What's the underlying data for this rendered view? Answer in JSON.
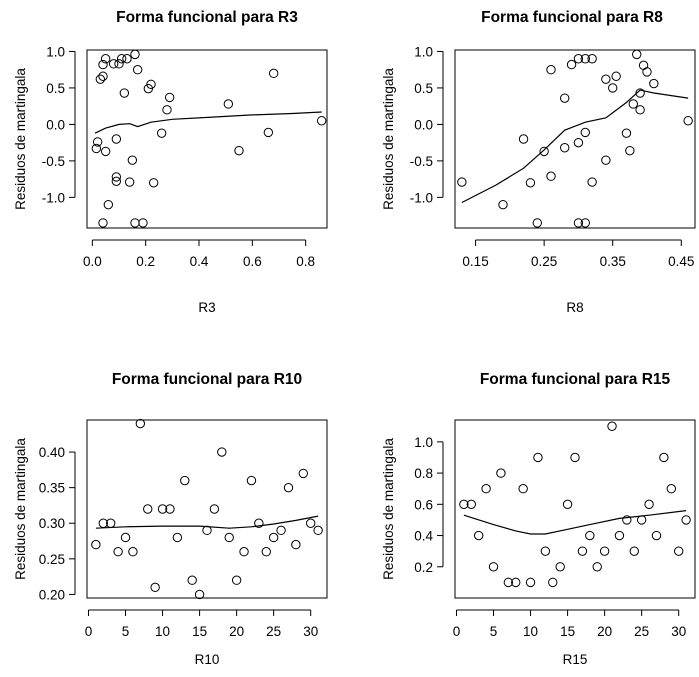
{
  "chart_data": [
    {
      "type": "scatter",
      "title": "Forma funcional para R3",
      "xlabel": "R3",
      "ylabel": "Residuos de martingala",
      "xlim": [
        -0.02,
        0.88
      ],
      "ylim": [
        -1.42,
        1.02
      ],
      "xticks": [
        0.0,
        0.2,
        0.4,
        0.6,
        0.8
      ],
      "xtick_labels": [
        "0.0",
        "0.2",
        "0.4",
        "0.6",
        "0.8"
      ],
      "yticks": [
        -1.0,
        -0.5,
        0.0,
        0.5,
        1.0
      ],
      "ytick_labels": [
        "-1.0",
        "-0.5",
        "0.0",
        "0.5",
        "1.0"
      ],
      "points": [
        [
          0.015,
          -0.33
        ],
        [
          0.02,
          -0.24
        ],
        [
          0.03,
          0.62
        ],
        [
          0.04,
          0.66
        ],
        [
          0.04,
          0.82
        ],
        [
          0.05,
          -0.37
        ],
        [
          0.05,
          0.9
        ],
        [
          0.04,
          -1.35
        ],
        [
          0.06,
          -1.1
        ],
        [
          0.08,
          0.83
        ],
        [
          0.09,
          -0.72
        ],
        [
          0.09,
          -0.78
        ],
        [
          0.09,
          -0.2
        ],
        [
          0.1,
          0.83
        ],
        [
          0.11,
          0.9
        ],
        [
          0.12,
          0.43
        ],
        [
          0.13,
          0.9
        ],
        [
          0.14,
          -0.79
        ],
        [
          0.15,
          -0.49
        ],
        [
          0.16,
          -1.35
        ],
        [
          0.16,
          0.96
        ],
        [
          0.19,
          -1.35
        ],
        [
          0.17,
          0.75
        ],
        [
          0.21,
          0.49
        ],
        [
          0.22,
          0.55
        ],
        [
          0.23,
          -0.8
        ],
        [
          0.26,
          -0.12
        ],
        [
          0.28,
          0.2
        ],
        [
          0.29,
          0.37
        ],
        [
          0.51,
          0.28
        ],
        [
          0.55,
          -0.36
        ],
        [
          0.66,
          -0.11
        ],
        [
          0.68,
          0.7
        ],
        [
          0.86,
          0.05
        ]
      ],
      "smooth": [
        [
          0.01,
          -0.12
        ],
        [
          0.05,
          -0.05
        ],
        [
          0.1,
          0.0
        ],
        [
          0.14,
          0.01
        ],
        [
          0.17,
          -0.03
        ],
        [
          0.22,
          0.03
        ],
        [
          0.3,
          0.07
        ],
        [
          0.45,
          0.1
        ],
        [
          0.6,
          0.13
        ],
        [
          0.75,
          0.15
        ],
        [
          0.86,
          0.17
        ]
      ]
    },
    {
      "type": "scatter",
      "title": "Forma funcional para R8",
      "xlabel": "R8",
      "ylabel": "Residuos de martingala",
      "xlim": [
        0.12,
        0.47
      ],
      "ylim": [
        -1.42,
        1.02
      ],
      "xticks": [
        0.15,
        0.25,
        0.35,
        0.45
      ],
      "xtick_labels": [
        "0.15",
        "0.25",
        "0.35",
        "0.45"
      ],
      "yticks": [
        -1.0,
        -0.5,
        0.0,
        0.5,
        1.0
      ],
      "ytick_labels": [
        "-1.0",
        "-0.5",
        "0.0",
        "0.5",
        "1.0"
      ],
      "points": [
        [
          0.13,
          -0.79
        ],
        [
          0.19,
          -1.1
        ],
        [
          0.22,
          -0.2
        ],
        [
          0.23,
          -0.8
        ],
        [
          0.24,
          -1.35
        ],
        [
          0.25,
          -0.37
        ],
        [
          0.26,
          0.75
        ],
        [
          0.26,
          -0.71
        ],
        [
          0.28,
          0.36
        ],
        [
          0.28,
          -0.32
        ],
        [
          0.29,
          0.82
        ],
        [
          0.3,
          0.9
        ],
        [
          0.3,
          -1.35
        ],
        [
          0.3,
          -0.25
        ],
        [
          0.31,
          -1.35
        ],
        [
          0.31,
          0.9
        ],
        [
          0.31,
          -0.11
        ],
        [
          0.32,
          0.9
        ],
        [
          0.32,
          -0.79
        ],
        [
          0.34,
          -0.49
        ],
        [
          0.34,
          0.62
        ],
        [
          0.35,
          0.5
        ],
        [
          0.355,
          0.66
        ],
        [
          0.37,
          -0.12
        ],
        [
          0.375,
          -0.36
        ],
        [
          0.38,
          0.28
        ],
        [
          0.385,
          0.96
        ],
        [
          0.39,
          0.2
        ],
        [
          0.39,
          0.43
        ],
        [
          0.395,
          0.81
        ],
        [
          0.4,
          0.72
        ],
        [
          0.41,
          0.56
        ],
        [
          0.46,
          0.05
        ]
      ],
      "smooth": [
        [
          0.13,
          -1.07
        ],
        [
          0.18,
          -0.83
        ],
        [
          0.22,
          -0.6
        ],
        [
          0.25,
          -0.35
        ],
        [
          0.28,
          -0.08
        ],
        [
          0.31,
          0.03
        ],
        [
          0.34,
          0.09
        ],
        [
          0.37,
          0.3
        ],
        [
          0.39,
          0.47
        ],
        [
          0.41,
          0.43
        ],
        [
          0.46,
          0.36
        ]
      ]
    },
    {
      "type": "scatter",
      "title": "Forma funcional para R10",
      "xlabel": "R10",
      "ylabel": "Residuos de martingala",
      "xlim": [
        -0.2,
        32.2
      ],
      "ylim": [
        0.195,
        0.445
      ],
      "xticks": [
        0,
        5,
        10,
        15,
        20,
        25,
        30
      ],
      "xtick_labels": [
        "0",
        "5",
        "10",
        "15",
        "20",
        "25",
        "30"
      ],
      "yticks": [
        0.2,
        0.25,
        0.3,
        0.35,
        0.4
      ],
      "ytick_labels": [
        "0.20",
        "0.25",
        "0.30",
        "0.35",
        "0.40"
      ],
      "points": [
        [
          1,
          0.27
        ],
        [
          2,
          0.3
        ],
        [
          3,
          0.3
        ],
        [
          4,
          0.26
        ],
        [
          5,
          0.28
        ],
        [
          6,
          0.26
        ],
        [
          7,
          0.44
        ],
        [
          8,
          0.32
        ],
        [
          9,
          0.21
        ],
        [
          10,
          0.32
        ],
        [
          11,
          0.32
        ],
        [
          12,
          0.28
        ],
        [
          13,
          0.36
        ],
        [
          14,
          0.22
        ],
        [
          15,
          0.2
        ],
        [
          16,
          0.29
        ],
        [
          17,
          0.32
        ],
        [
          18,
          0.4
        ],
        [
          19,
          0.28
        ],
        [
          20,
          0.22
        ],
        [
          21,
          0.26
        ],
        [
          22,
          0.36
        ],
        [
          23,
          0.3
        ],
        [
          24,
          0.26
        ],
        [
          25,
          0.28
        ],
        [
          26,
          0.29
        ],
        [
          27,
          0.35
        ],
        [
          28,
          0.27
        ],
        [
          29,
          0.37
        ],
        [
          30,
          0.3
        ],
        [
          31,
          0.29
        ]
      ],
      "smooth": [
        [
          1,
          0.293
        ],
        [
          5,
          0.295
        ],
        [
          10,
          0.296
        ],
        [
          15,
          0.296
        ],
        [
          19,
          0.293
        ],
        [
          22,
          0.295
        ],
        [
          25,
          0.299
        ],
        [
          28,
          0.304
        ],
        [
          31,
          0.31
        ]
      ]
    },
    {
      "type": "scatter",
      "title": "Forma funcional para R15",
      "xlabel": "R15",
      "ylabel": "Residuos de martingala",
      "xlim": [
        -0.2,
        32.2
      ],
      "ylim": [
        0.0,
        1.14
      ],
      "xticks": [
        0,
        5,
        10,
        15,
        20,
        25,
        30
      ],
      "xtick_labels": [
        "0",
        "5",
        "10",
        "15",
        "20",
        "25",
        "30"
      ],
      "yticks": [
        0.2,
        0.4,
        0.6,
        0.8,
        1.0
      ],
      "ytick_labels": [
        "0.2",
        "0.4",
        "0.6",
        "0.8",
        "1.0"
      ],
      "points": [
        [
          1,
          0.6
        ],
        [
          2,
          0.6
        ],
        [
          3,
          0.4
        ],
        [
          4,
          0.7
        ],
        [
          5,
          0.2
        ],
        [
          6,
          0.8
        ],
        [
          7,
          0.1
        ],
        [
          8,
          0.1
        ],
        [
          9,
          0.7
        ],
        [
          10,
          0.1
        ],
        [
          11,
          0.9
        ],
        [
          12,
          0.3
        ],
        [
          13,
          0.1
        ],
        [
          14,
          0.2
        ],
        [
          15,
          0.6
        ],
        [
          16,
          0.9
        ],
        [
          17,
          0.3
        ],
        [
          18,
          0.4
        ],
        [
          19,
          0.2
        ],
        [
          20,
          0.3
        ],
        [
          21,
          1.1
        ],
        [
          22,
          0.4
        ],
        [
          23,
          0.5
        ],
        [
          24,
          0.3
        ],
        [
          25,
          0.5
        ],
        [
          26,
          0.6
        ],
        [
          27,
          0.4
        ],
        [
          28,
          0.9
        ],
        [
          29,
          0.7
        ],
        [
          30,
          0.3
        ],
        [
          31,
          0.5
        ]
      ],
      "smooth": [
        [
          1,
          0.53
        ],
        [
          5,
          0.47
        ],
        [
          8,
          0.43
        ],
        [
          10,
          0.41
        ],
        [
          12,
          0.41
        ],
        [
          15,
          0.44
        ],
        [
          18,
          0.47
        ],
        [
          22,
          0.51
        ],
        [
          26,
          0.53
        ],
        [
          31,
          0.56
        ]
      ]
    }
  ]
}
